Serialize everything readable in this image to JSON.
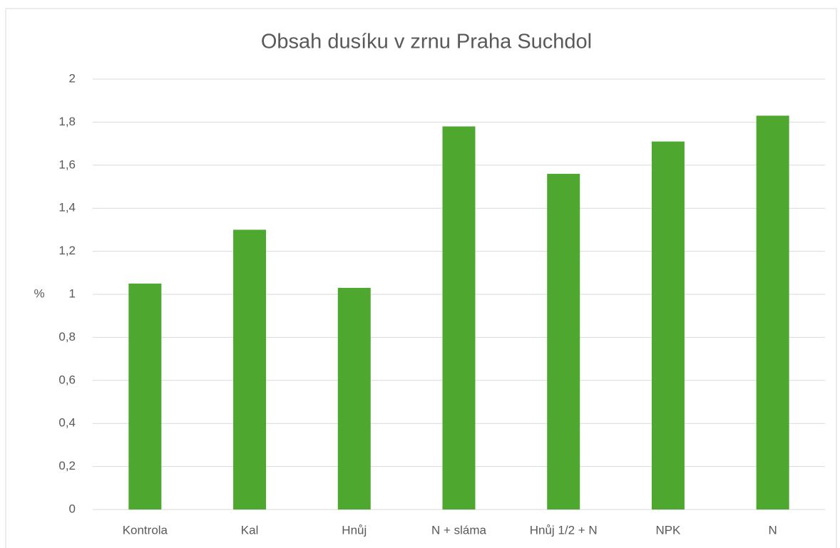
{
  "chart_data": {
    "type": "bar",
    "title": "Obsah dusíku v zrnu Praha Suchdol",
    "y_label": "%",
    "categories": [
      "Kontrola",
      "Kal",
      "Hnůj",
      "N + sláma",
      "Hnůj 1/2 + N",
      "NPK",
      "N"
    ],
    "values": [
      1.05,
      1.3,
      1.03,
      1.78,
      1.56,
      1.71,
      1.83
    ],
    "color": "#4ea72e",
    "ylim": [
      0,
      2
    ],
    "yticks": [
      0,
      {
        "value": 0.2,
        "label": "0,2"
      },
      {
        "value": 0.4,
        "label": "0,4"
      },
      {
        "value": 0.6,
        "label": "0,6"
      },
      {
        "value": 0.8,
        "label": "0,8"
      },
      1,
      {
        "value": 1.2,
        "label": "1,2"
      },
      {
        "value": 1.4,
        "label": "1,4"
      },
      {
        "value": 1.6,
        "label": "1,6"
      },
      {
        "value": 1.8,
        "label": "1,8"
      },
      2
    ],
    "grid": true
  }
}
